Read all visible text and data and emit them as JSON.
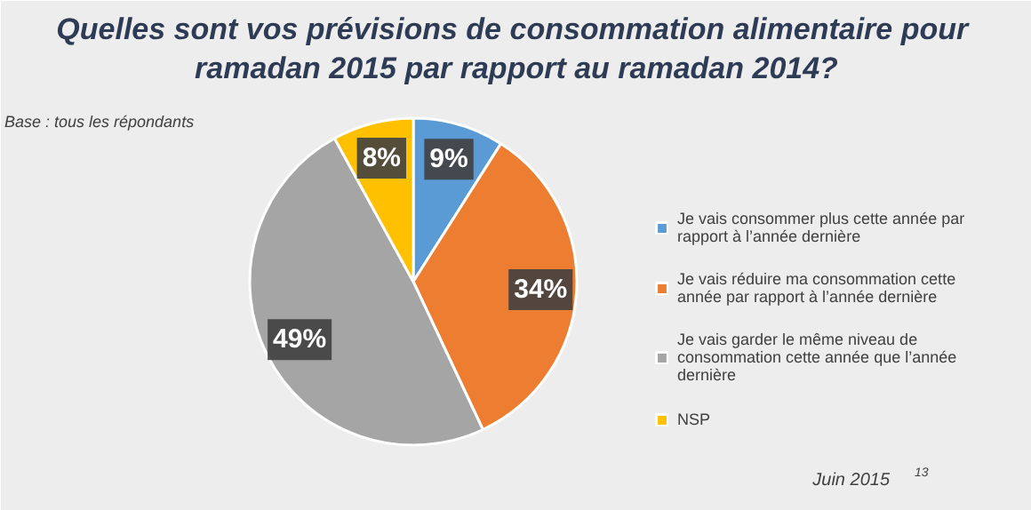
{
  "chart_data": {
    "type": "pie",
    "title": "Quelles sont vos prévisions de consommation alimentaire  pour ramadan 2015 par rapport au ramadan 2014?",
    "categories": [
      "Je vais consommer plus cette année par rapport à l’année dernière",
      "Je vais réduire ma consommation cette année par rapport à l’année dernière",
      "Je vais garder le même niveau de consommation cette année que l’année dernière",
      "NSP"
    ],
    "values": [
      9,
      34,
      49,
      8
    ],
    "colors": [
      "#5b9bd5",
      "#ed7d31",
      "#a5a5a5",
      "#ffc000"
    ],
    "value_labels": [
      "9%",
      "34%",
      "49%",
      "8%"
    ],
    "legend": "right",
    "annotations": [
      "Base : tous les répondants",
      "Juin 2015",
      "13"
    ]
  }
}
